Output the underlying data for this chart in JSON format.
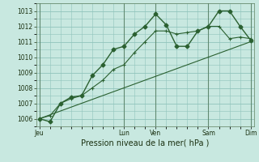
{
  "xlabel": "Pression niveau de la mer( hPa )",
  "bg_color": "#c8e8e0",
  "grid_color": "#90c4bc",
  "line_color": "#2a6030",
  "ylim": [
    1005.5,
    1013.5
  ],
  "yticks": [
    1006,
    1007,
    1008,
    1009,
    1010,
    1011,
    1012,
    1013
  ],
  "xtick_labels": [
    "Jeu",
    "",
    "Lun",
    "Ven",
    "",
    "Sam",
    "",
    "Dim"
  ],
  "xtick_positions": [
    0,
    4,
    8,
    11,
    14,
    16,
    18,
    20
  ],
  "day_vlines": [
    0,
    8,
    11,
    16,
    20
  ],
  "xlim": [
    -0.3,
    20.3
  ],
  "series1_x": [
    0,
    1,
    2,
    3,
    4,
    5,
    6,
    7,
    8,
    9,
    10,
    11,
    12,
    13,
    14,
    15,
    16,
    17,
    18,
    19,
    20
  ],
  "series1_y": [
    1006.0,
    1005.8,
    1007.0,
    1007.4,
    1007.5,
    1008.8,
    1009.5,
    1010.5,
    1010.7,
    1011.5,
    1012.0,
    1012.8,
    1012.1,
    1010.7,
    1010.7,
    1011.7,
    1012.0,
    1013.0,
    1013.0,
    1012.0,
    1011.1
  ],
  "series2_x": [
    0,
    1,
    2,
    3,
    4,
    5,
    6,
    7,
    8,
    9,
    10,
    11,
    12,
    13,
    14,
    15,
    16,
    17,
    18,
    19,
    20
  ],
  "series2_y": [
    1006.0,
    1006.2,
    1007.0,
    1007.3,
    1007.5,
    1008.0,
    1008.5,
    1009.2,
    1009.5,
    1010.3,
    1011.0,
    1011.7,
    1011.7,
    1011.5,
    1011.6,
    1011.7,
    1012.0,
    1012.0,
    1011.2,
    1011.3,
    1011.2
  ],
  "series3_x": [
    0,
    20
  ],
  "series3_y": [
    1006.0,
    1011.0
  ]
}
